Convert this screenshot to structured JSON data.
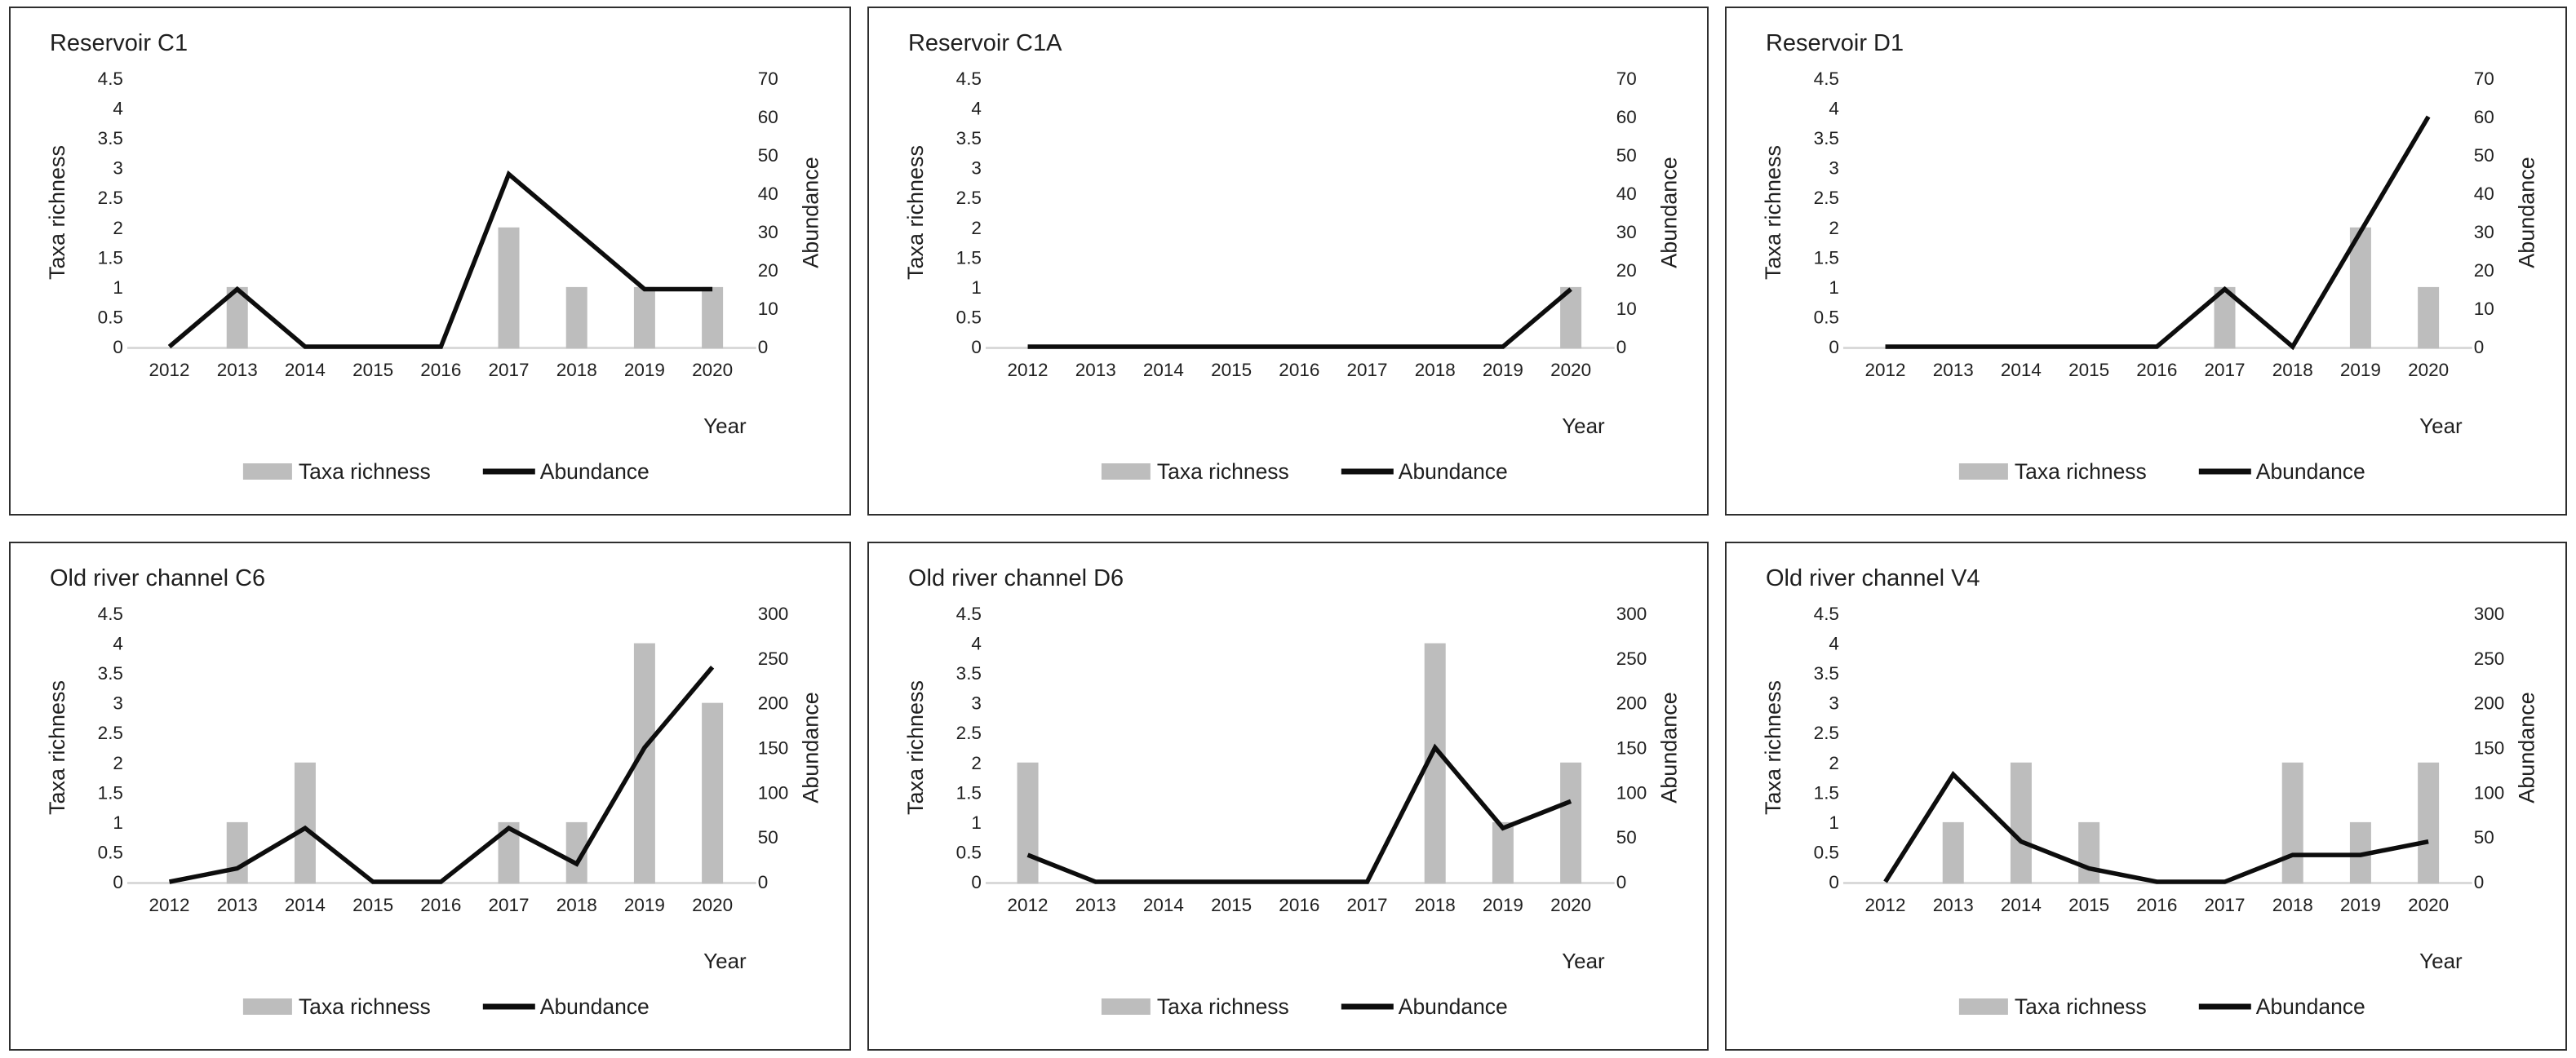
{
  "figure": {
    "categories": [
      "2012",
      "2013",
      "2014",
      "2015",
      "2016",
      "2017",
      "2018",
      "2019",
      "2020"
    ],
    "x_axis_label": "Year",
    "left_axis_label": "Taxa richness",
    "right_axis_label": "Abundance",
    "legend": {
      "bar_label": "Taxa richness",
      "line_label": "Abundance",
      "position": "bottom"
    },
    "colors": {
      "bar": "#bdbdbd",
      "line": "#0d0d0d",
      "baseline": "#d9d9d9",
      "text": "#1f1f1f",
      "panel_border": "#2e2e2e",
      "background": "#ffffff"
    }
  },
  "chart_data": [
    {
      "type": "combo",
      "title": "Reservoir C1",
      "categories": [
        "2012",
        "2013",
        "2014",
        "2015",
        "2016",
        "2017",
        "2018",
        "2019",
        "2020"
      ],
      "xlabel": "Year",
      "grid": false,
      "legend_position": "bottom",
      "left_axis": {
        "label": "Taxa richness",
        "min": 0,
        "max": 4.5,
        "step": 0.5
      },
      "right_axis": {
        "label": "Abundance",
        "min": 0,
        "max": 70,
        "step": 10
      },
      "series": [
        {
          "name": "Taxa richness",
          "type": "bar",
          "axis": "left",
          "values": [
            0,
            1,
            0,
            0,
            0,
            2,
            1,
            1,
            1
          ]
        },
        {
          "name": "Abundance",
          "type": "line",
          "axis": "right",
          "values": [
            0,
            15,
            0,
            0,
            0,
            45,
            30,
            15,
            15
          ]
        }
      ]
    },
    {
      "type": "combo",
      "title": "Reservoir C1A",
      "categories": [
        "2012",
        "2013",
        "2014",
        "2015",
        "2016",
        "2017",
        "2018",
        "2019",
        "2020"
      ],
      "xlabel": "Year",
      "grid": false,
      "legend_position": "bottom",
      "left_axis": {
        "label": "Taxa richness",
        "min": 0,
        "max": 4.5,
        "step": 0.5
      },
      "right_axis": {
        "label": "Abundance",
        "min": 0,
        "max": 70,
        "step": 10
      },
      "series": [
        {
          "name": "Taxa richness",
          "type": "bar",
          "axis": "left",
          "values": [
            0,
            0,
            0,
            0,
            0,
            0,
            0,
            0,
            1
          ]
        },
        {
          "name": "Abundance",
          "type": "line",
          "axis": "right",
          "values": [
            0,
            0,
            0,
            0,
            0,
            0,
            0,
            0,
            15
          ]
        }
      ]
    },
    {
      "type": "combo",
      "title": "Reservoir D1",
      "categories": [
        "2012",
        "2013",
        "2014",
        "2015",
        "2016",
        "2017",
        "2018",
        "2019",
        "2020"
      ],
      "xlabel": "Year",
      "grid": false,
      "legend_position": "bottom",
      "left_axis": {
        "label": "Taxa richness",
        "min": 0,
        "max": 4.5,
        "step": 0.5
      },
      "right_axis": {
        "label": "Abundance",
        "min": 0,
        "max": 70,
        "step": 10
      },
      "series": [
        {
          "name": "Taxa richness",
          "type": "bar",
          "axis": "left",
          "values": [
            0,
            0,
            0,
            0,
            0,
            1,
            0,
            2,
            1
          ]
        },
        {
          "name": "Abundance",
          "type": "line",
          "axis": "right",
          "values": [
            0,
            0,
            0,
            0,
            0,
            15,
            0,
            30,
            60
          ]
        }
      ]
    },
    {
      "type": "combo",
      "title": "Old river channel C6",
      "categories": [
        "2012",
        "2013",
        "2014",
        "2015",
        "2016",
        "2017",
        "2018",
        "2019",
        "2020"
      ],
      "xlabel": "Year",
      "grid": false,
      "legend_position": "bottom",
      "left_axis": {
        "label": "Taxa richness",
        "min": 0,
        "max": 4.5,
        "step": 0.5
      },
      "right_axis": {
        "label": "Abundance",
        "min": 0,
        "max": 300,
        "step": 50
      },
      "series": [
        {
          "name": "Taxa richness",
          "type": "bar",
          "axis": "left",
          "values": [
            0,
            1,
            2,
            0,
            0,
            1,
            1,
            4,
            3
          ]
        },
        {
          "name": "Abundance",
          "type": "line",
          "axis": "right",
          "values": [
            0,
            15,
            60,
            0,
            0,
            60,
            20,
            150,
            240
          ]
        }
      ]
    },
    {
      "type": "combo",
      "title": "Old river channel D6",
      "categories": [
        "2012",
        "2013",
        "2014",
        "2015",
        "2016",
        "2017",
        "2018",
        "2019",
        "2020"
      ],
      "xlabel": "Year",
      "grid": false,
      "legend_position": "bottom",
      "left_axis": {
        "label": "Taxa richness",
        "min": 0,
        "max": 4.5,
        "step": 0.5
      },
      "right_axis": {
        "label": "Abundance",
        "min": 0,
        "max": 300,
        "step": 50
      },
      "series": [
        {
          "name": "Taxa richness",
          "type": "bar",
          "axis": "left",
          "values": [
            2,
            0,
            0,
            0,
            0,
            0,
            4,
            1,
            2
          ]
        },
        {
          "name": "Abundance",
          "type": "line",
          "axis": "right",
          "values": [
            30,
            0,
            0,
            0,
            0,
            0,
            150,
            60,
            90
          ]
        }
      ]
    },
    {
      "type": "combo",
      "title": "Old river channel V4",
      "categories": [
        "2012",
        "2013",
        "2014",
        "2015",
        "2016",
        "2017",
        "2018",
        "2019",
        "2020"
      ],
      "xlabel": "Year",
      "grid": false,
      "legend_position": "bottom",
      "left_axis": {
        "label": "Taxa richness",
        "min": 0,
        "max": 4.5,
        "step": 0.5
      },
      "right_axis": {
        "label": "Abundance",
        "min": 0,
        "max": 300,
        "step": 50
      },
      "series": [
        {
          "name": "Taxa richness",
          "type": "bar",
          "axis": "left",
          "values": [
            0,
            1,
            2,
            1,
            0,
            0,
            2,
            1,
            2
          ]
        },
        {
          "name": "Abundance",
          "type": "line",
          "axis": "right",
          "values": [
            0,
            120,
            45,
            15,
            0,
            0,
            30,
            30,
            45
          ]
        }
      ]
    }
  ]
}
